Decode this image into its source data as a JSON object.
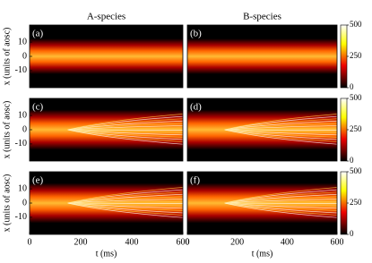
{
  "chart_data": [
    {
      "type": "heatmap",
      "label": "(a)",
      "title": "A-species",
      "ylabel": "x (units of aosc)",
      "ylim": [
        -22,
        22
      ],
      "yticks": [
        10,
        0,
        -10
      ],
      "xlim": [
        0,
        600
      ],
      "stripes": false
    },
    {
      "type": "heatmap",
      "label": "(b)",
      "title": "B-species",
      "ylim": [
        -22,
        22
      ],
      "xlim": [
        0,
        600
      ],
      "stripes": false,
      "colorbar": {
        "lim": [
          0,
          500
        ],
        "ticks": [
          0,
          250,
          500
        ]
      }
    },
    {
      "type": "heatmap",
      "label": "(c)",
      "ylabel": "x (units of aosc)",
      "ylim": [
        -22,
        22
      ],
      "yticks": [
        10,
        0,
        -10
      ],
      "xlim": [
        0,
        600
      ],
      "stripes": true
    },
    {
      "type": "heatmap",
      "label": "(d)",
      "ylim": [
        -22,
        22
      ],
      "xlim": [
        0,
        600
      ],
      "stripes": true,
      "colorbar": {
        "lim": [
          0,
          500
        ],
        "ticks": [
          0,
          250,
          500
        ]
      }
    },
    {
      "type": "heatmap",
      "label": "(e)",
      "ylabel": "x (units of aosc)",
      "xlabel": "t (ms)",
      "ylim": [
        -22,
        22
      ],
      "yticks": [
        10,
        0,
        -10
      ],
      "xlim": [
        0,
        600
      ],
      "xticks": [
        0,
        200,
        400,
        600
      ],
      "stripes": true
    },
    {
      "type": "heatmap",
      "label": "(f)",
      "xlabel": "t (ms)",
      "ylim": [
        -22,
        22
      ],
      "xlim": [
        0,
        600
      ],
      "xticks": [
        0,
        200,
        400,
        600
      ],
      "stripes": true,
      "colorbar": {
        "lim": [
          0,
          500
        ],
        "ticks": [
          0,
          250,
          500
        ]
      }
    }
  ]
}
